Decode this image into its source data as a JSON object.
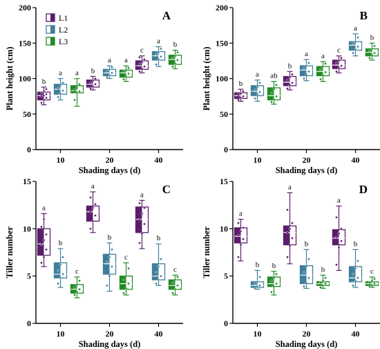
{
  "colors": {
    "L1": "#5b1d6b",
    "L2": "#3f7e9a",
    "L3": "#1f8a24",
    "white": "#ffffff",
    "axis": "#000000"
  },
  "legend": [
    {
      "label": "L1",
      "color": "#5b1d6b"
    },
    {
      "label": "L2",
      "color": "#3f7e9a"
    },
    {
      "label": "L3",
      "color": "#1f8a24"
    }
  ],
  "chart_data": [
    {
      "type": "box",
      "panel": "A",
      "title": "A",
      "ylabel": "Plant height (cm)",
      "xlabel": "Shading days (d)",
      "categories": [
        "10",
        "20",
        "40"
      ],
      "ylim": [
        0,
        200
      ],
      "yticks": [
        0,
        50,
        100,
        150,
        200
      ],
      "legend_position": "top-left",
      "series": [
        {
          "name": "L1",
          "boxes": [
            {
              "min": 63,
              "q1": 70,
              "median": 76,
              "q3": 81,
              "max": 88,
              "sig": "b",
              "points": [
                66,
                70,
                73,
                75,
                76,
                78,
                80,
                82,
                85
              ]
            },
            {
              "min": 84,
              "q1": 88,
              "median": 92,
              "q3": 98,
              "max": 103,
              "sig": "b",
              "points": [
                86,
                89,
                92,
                94,
                97,
                100
              ]
            },
            {
              "min": 108,
              "q1": 113,
              "median": 118,
              "q3": 125,
              "max": 132,
              "sig": "c",
              "points": [
                110,
                114,
                117,
                120,
                123,
                127,
                130
              ]
            }
          ]
        },
        {
          "name": "L2",
          "boxes": [
            {
              "min": 70,
              "q1": 78,
              "median": 85,
              "q3": 92,
              "max": 100,
              "sig": "a",
              "points": [
                74,
                79,
                83,
                86,
                90,
                94
              ]
            },
            {
              "min": 100,
              "q1": 104,
              "median": 108,
              "q3": 113,
              "max": 118,
              "sig": "a",
              "points": [
                102,
                105,
                108,
                110,
                113,
                116
              ]
            },
            {
              "min": 117,
              "q1": 126,
              "median": 132,
              "q3": 138,
              "max": 145,
              "sig": "a",
              "points": [
                120,
                127,
                131,
                134,
                137,
                142
              ]
            }
          ]
        },
        {
          "name": "L3",
          "boxes": [
            {
              "min": 61,
              "q1": 80,
              "median": 83,
              "q3": 90,
              "max": 100,
              "sig": "a",
              "points": [
                70,
                80,
                82,
                84,
                87,
                92
              ]
            },
            {
              "min": 96,
              "q1": 102,
              "median": 108,
              "q3": 112,
              "max": 118,
              "sig": "a",
              "points": [
                99,
                103,
                107,
                110,
                112,
                115
              ]
            },
            {
              "min": 114,
              "q1": 120,
              "median": 127,
              "q3": 133,
              "max": 140,
              "sig": "b",
              "points": [
                117,
                121,
                126,
                129,
                132,
                137
              ]
            }
          ]
        }
      ]
    },
    {
      "type": "box",
      "panel": "B",
      "title": "B",
      "ylabel": "Plant height (cm)",
      "xlabel": "Shading days (d)",
      "categories": [
        "10",
        "20",
        "40"
      ],
      "ylim": [
        0,
        200
      ],
      "yticks": [
        0,
        50,
        100,
        150,
        200
      ],
      "series": [
        {
          "name": "L1",
          "boxes": [
            {
              "min": 68,
              "q1": 72,
              "median": 76,
              "q3": 80,
              "max": 85,
              "sig": "b",
              "points": [
                70,
                73,
                75,
                77,
                79,
                82
              ]
            },
            {
              "min": 84,
              "q1": 90,
              "median": 95,
              "q3": 103,
              "max": 110,
              "sig": "b",
              "points": [
                86,
                91,
                94,
                98,
                102,
                106
              ]
            },
            {
              "min": 108,
              "q1": 114,
              "median": 119,
              "q3": 126,
              "max": 132,
              "sig": "c",
              "points": [
                110,
                115,
                118,
                122,
                125,
                129
              ]
            }
          ]
        },
        {
          "name": "L2",
          "boxes": [
            {
              "min": 68,
              "q1": 76,
              "median": 82,
              "q3": 90,
              "max": 98,
              "sig": "a",
              "points": [
                72,
                78,
                81,
                84,
                88,
                94
              ]
            },
            {
              "min": 97,
              "q1": 104,
              "median": 112,
              "q3": 118,
              "max": 127,
              "sig": "a",
              "points": [
                100,
                106,
                110,
                114,
                118,
                122
              ]
            },
            {
              "min": 132,
              "q1": 140,
              "median": 147,
              "q3": 152,
              "max": 163,
              "sig": "a",
              "points": [
                136,
                141,
                145,
                149,
                152,
                158
              ]
            }
          ]
        },
        {
          "name": "L3",
          "boxes": [
            {
              "min": 64,
              "q1": 70,
              "median": 76,
              "q3": 87,
              "max": 96,
              "sig": "ab",
              "points": [
                67,
                71,
                75,
                80,
                85,
                91
              ]
            },
            {
              "min": 96,
              "q1": 104,
              "median": 110,
              "q3": 117,
              "max": 124,
              "sig": "a",
              "points": [
                99,
                105,
                109,
                113,
                117,
                121
              ]
            },
            {
              "min": 126,
              "q1": 132,
              "median": 137,
              "q3": 142,
              "max": 150,
              "sig": "b",
              "points": [
                129,
                133,
                136,
                139,
                142,
                146
              ]
            }
          ]
        }
      ]
    },
    {
      "type": "box",
      "panel": "C",
      "title": "C",
      "ylabel": "Tiller number",
      "xlabel": "Shading days (d)",
      "categories": [
        "10",
        "20",
        "40"
      ],
      "ylim": [
        0,
        15
      ],
      "yticks": [
        0,
        5,
        10,
        15
      ],
      "series": [
        {
          "name": "L1",
          "boxes": [
            {
              "min": 6.0,
              "q1": 7.2,
              "median": 8.4,
              "q3": 10.0,
              "max": 11.6,
              "sig": "a",
              "points": [
                6.4,
                7.0,
                7.8,
                8.3,
                8.8,
                9.4,
                10.2,
                11.0
              ]
            },
            {
              "min": 9.6,
              "q1": 10.8,
              "median": 11.8,
              "q3": 12.4,
              "max": 13.9,
              "sig": "a",
              "points": [
                10.0,
                10.8,
                11.4,
                11.8,
                12.2,
                12.6,
                13.3
              ]
            },
            {
              "min": 7.9,
              "q1": 9.6,
              "median": 11.0,
              "q3": 12.3,
              "max": 13.0,
              "sig": "a",
              "points": [
                8.5,
                9.5,
                10.5,
                11.0,
                11.6,
                12.2,
                12.7
              ]
            }
          ]
        },
        {
          "name": "L2",
          "boxes": [
            {
              "min": 3.8,
              "q1": 4.8,
              "median": 5.2,
              "q3": 6.4,
              "max": 7.9,
              "sig": "b",
              "points": [
                4.2,
                4.8,
                5.2,
                5.6,
                6.2,
                7.0
              ]
            },
            {
              "min": 3.4,
              "q1": 5.2,
              "median": 6.3,
              "q3": 7.3,
              "max": 8.5,
              "sig": "b",
              "points": [
                4.0,
                5.0,
                6.0,
                6.5,
                7.0,
                7.8
              ]
            },
            {
              "min": 4.0,
              "q1": 4.6,
              "median": 5.0,
              "q3": 6.3,
              "max": 8.4,
              "sig": "b",
              "points": [
                4.2,
                4.6,
                5.0,
                5.4,
                6.0,
                6.8
              ]
            }
          ]
        },
        {
          "name": "L3",
          "boxes": [
            {
              "min": 2.7,
              "q1": 3.2,
              "median": 3.6,
              "q3": 4.1,
              "max": 4.9,
              "sig": "c",
              "points": [
                3.0,
                3.3,
                3.6,
                3.8,
                4.1,
                4.5
              ]
            },
            {
              "min": 3.0,
              "q1": 3.6,
              "median": 4.2,
              "q3": 5.0,
              "max": 6.4,
              "sig": "c",
              "points": [
                3.2,
                3.7,
                4.2,
                4.6,
                5.0,
                5.8
              ]
            },
            {
              "min": 3.0,
              "q1": 3.6,
              "median": 4.0,
              "q3": 4.6,
              "max": 5.1,
              "sig": "c",
              "points": [
                3.2,
                3.6,
                4.0,
                4.3,
                4.6,
                4.9
              ]
            }
          ]
        }
      ]
    },
    {
      "type": "box",
      "panel": "D",
      "title": "D",
      "ylabel": "Tiller number",
      "xlabel": "Shading days (d)",
      "categories": [
        "10",
        "20",
        "40"
      ],
      "ylim": [
        0,
        15
      ],
      "yticks": [
        0,
        5,
        10,
        15
      ],
      "series": [
        {
          "name": "L1",
          "boxes": [
            {
              "min": 6.6,
              "q1": 8.5,
              "median": 9.2,
              "q3": 10.1,
              "max": 11.0,
              "sig": "a",
              "points": [
                7.0,
                8.3,
                8.9,
                9.3,
                9.7,
                10.1,
                10.6
              ]
            },
            {
              "min": 6.3,
              "q1": 8.3,
              "median": 9.6,
              "q3": 10.3,
              "max": 13.8,
              "sig": "a",
              "points": [
                7.0,
                8.2,
                9.0,
                9.6,
                10.0,
                10.6,
                12.0
              ]
            },
            {
              "min": 5.6,
              "q1": 8.3,
              "median": 9.0,
              "q3": 9.9,
              "max": 12.4,
              "sig": "a",
              "points": [
                6.2,
                8.0,
                8.7,
                9.1,
                9.5,
                10.0,
                11.2
              ]
            }
          ]
        },
        {
          "name": "L2",
          "boxes": [
            {
              "min": 3.6,
              "q1": 3.8,
              "median": 4.0,
              "q3": 4.4,
              "max": 5.6,
              "sig": "b",
              "points": [
                3.7,
                3.9,
                4.0,
                4.2,
                4.4,
                4.9
              ]
            },
            {
              "min": 3.7,
              "q1": 4.2,
              "median": 5.1,
              "q3": 6.1,
              "max": 7.8,
              "sig": "b",
              "points": [
                3.9,
                4.3,
                4.8,
                5.4,
                6.0,
                6.8
              ]
            },
            {
              "min": 3.8,
              "q1": 4.4,
              "median": 4.8,
              "q3": 6.0,
              "max": 7.8,
              "sig": "b",
              "points": [
                4.0,
                4.5,
                4.8,
                5.2,
                5.8,
                6.6
              ]
            }
          ]
        },
        {
          "name": "L3",
          "boxes": [
            {
              "min": 3.0,
              "q1": 3.9,
              "median": 4.2,
              "q3": 4.9,
              "max": 5.5,
              "sig": "b",
              "points": [
                3.3,
                3.9,
                4.2,
                4.5,
                4.8,
                5.2
              ]
            },
            {
              "min": 3.7,
              "q1": 4.0,
              "median": 4.2,
              "q3": 4.4,
              "max": 5.1,
              "sig": "b",
              "points": [
                3.8,
                4.0,
                4.2,
                4.3,
                4.5,
                4.8
              ]
            },
            {
              "min": 3.8,
              "q1": 4.0,
              "median": 4.2,
              "q3": 4.4,
              "max": 4.9,
              "sig": "c",
              "points": [
                3.9,
                4.0,
                4.2,
                4.3,
                4.5,
                4.7
              ]
            }
          ]
        }
      ]
    }
  ]
}
